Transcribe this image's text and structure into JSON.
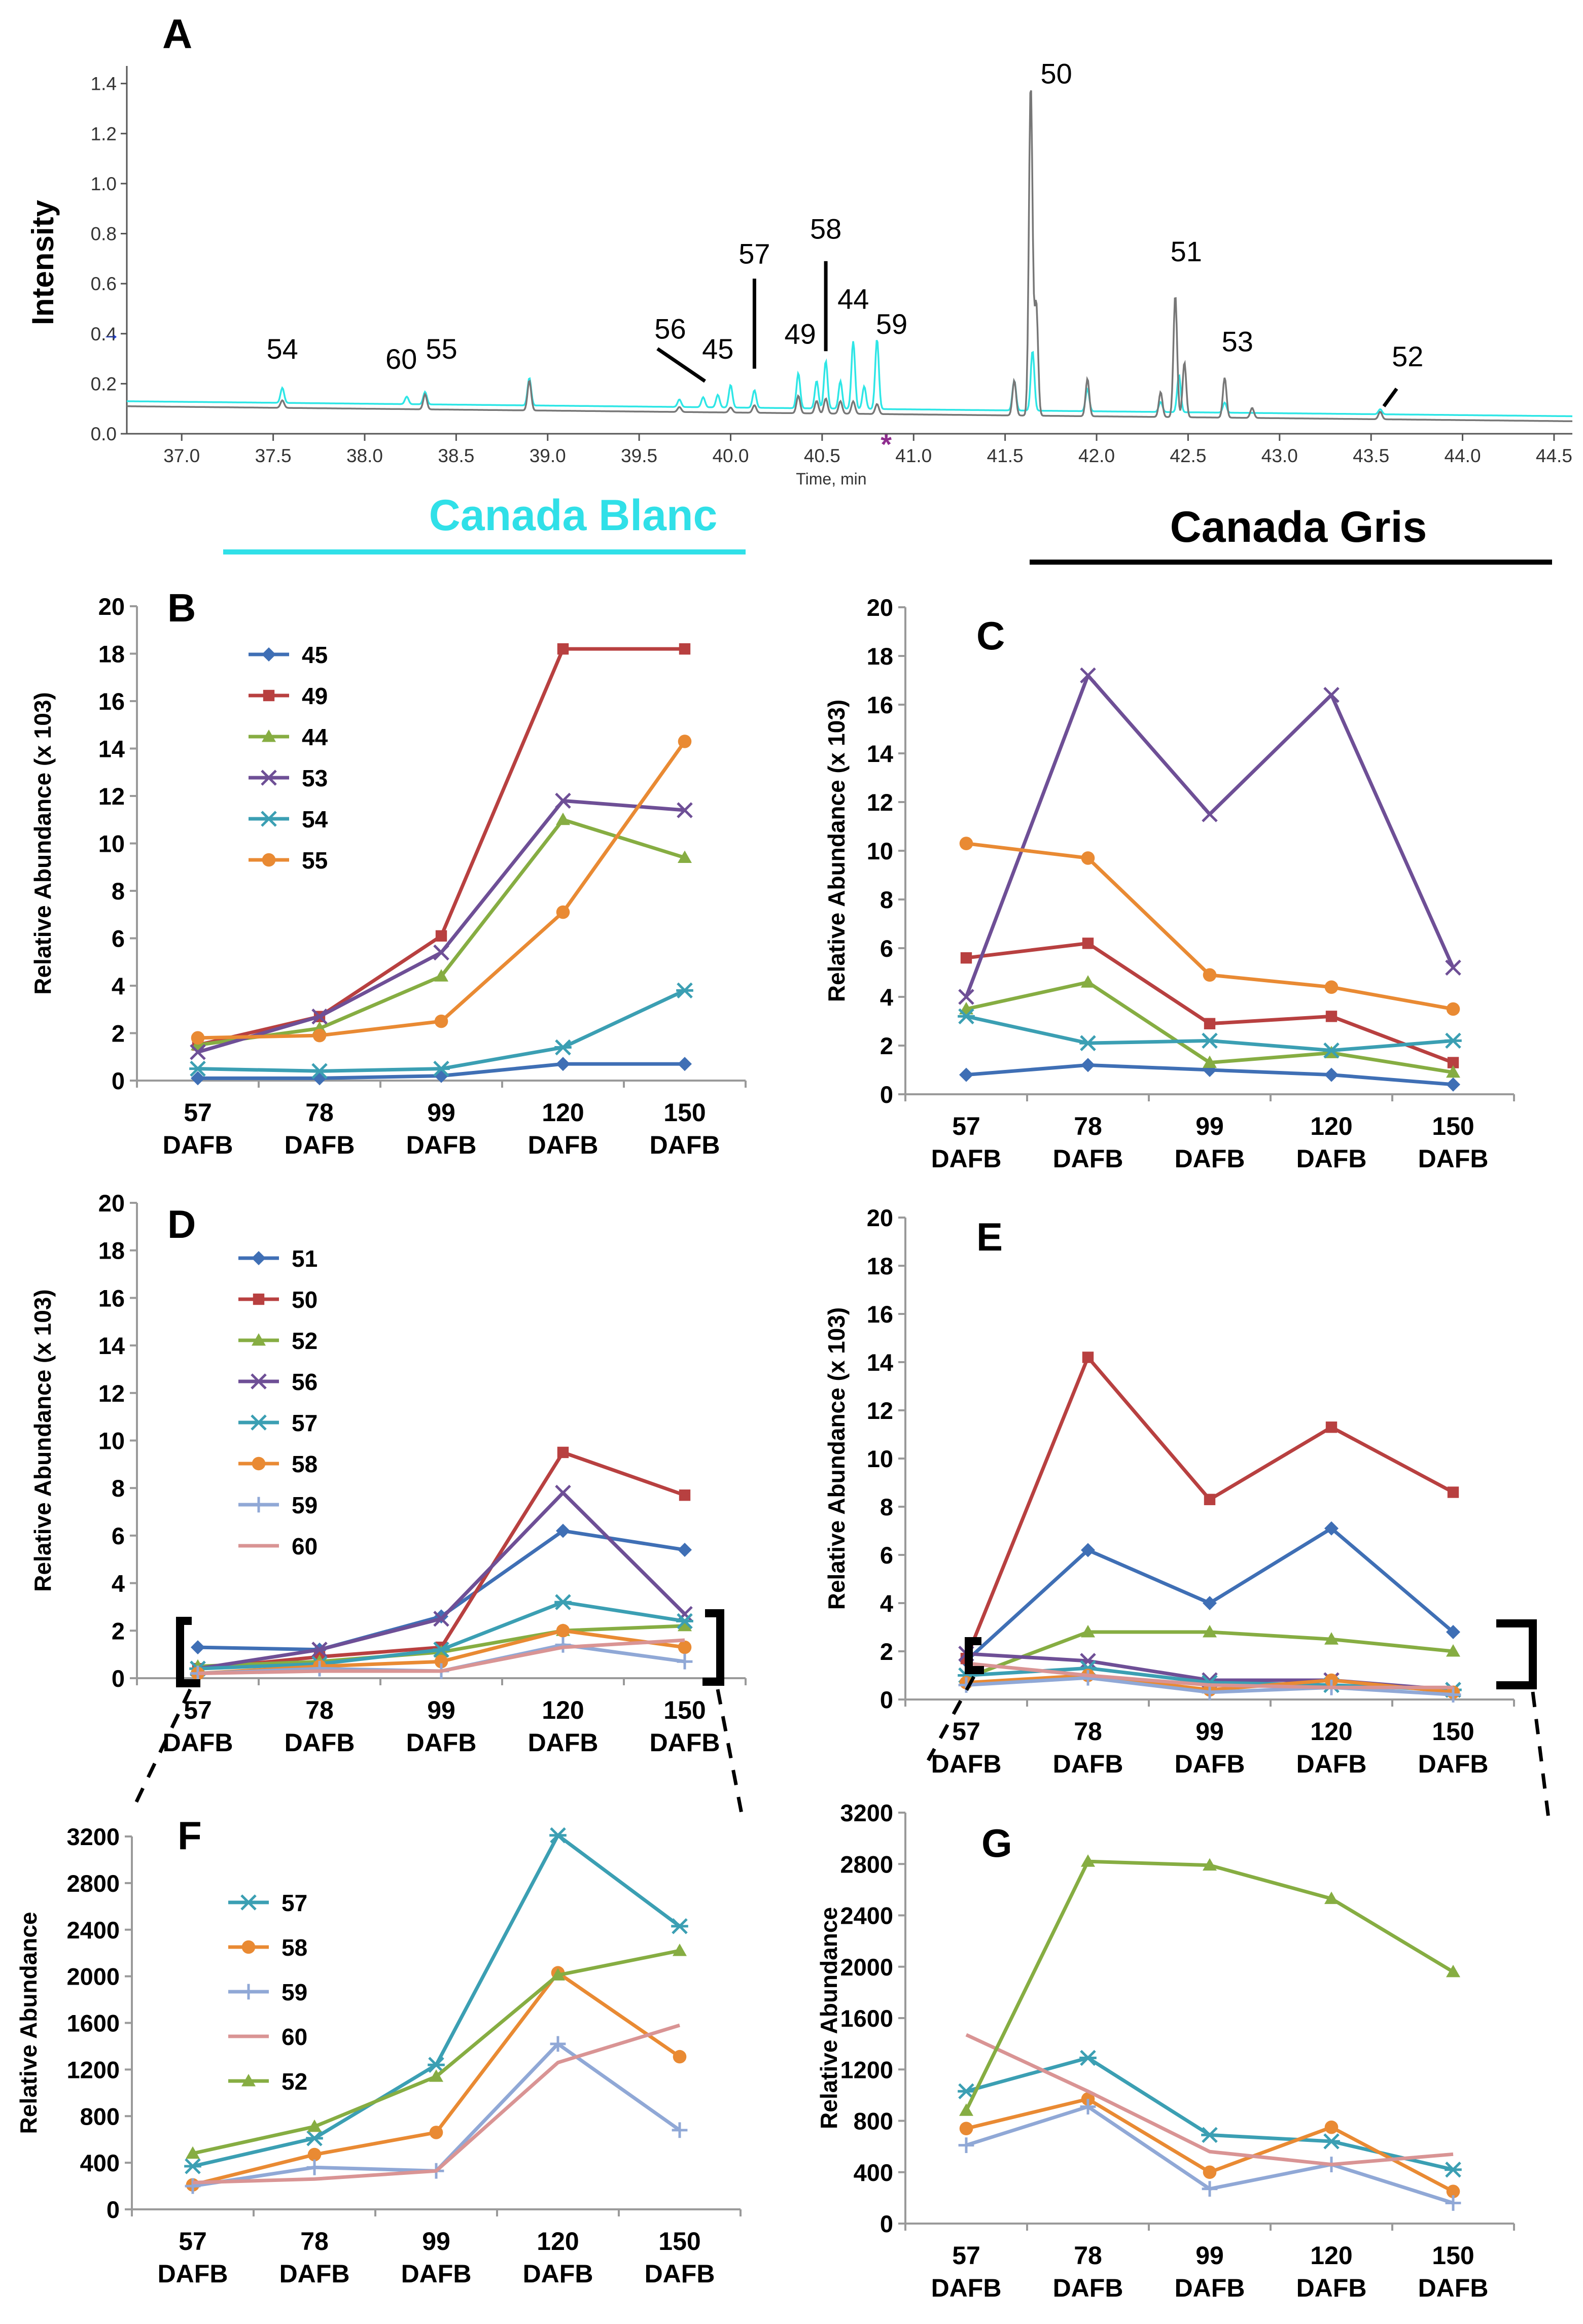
{
  "headers": {
    "blanc_title": "Canada Blanc",
    "gris_title": "Canada Gris"
  },
  "colors": {
    "s1": "#3f6fb5",
    "s2": "#b84040",
    "s3": "#86ad42",
    "s4": "#6e4f96",
    "s5": "#3b9fb3",
    "s6": "#e98a33",
    "s7": "#90a8d6",
    "s8": "#d99494",
    "cyan": "#2ee6e6",
    "gray": "#777777",
    "accent_blanc": "#30e0e8"
  },
  "chart_data": [
    {
      "id": "A",
      "type": "line",
      "panel_label": "A",
      "ylabel": "Intensity",
      "xlabel": "Time, min",
      "xlim": [
        36.7,
        44.6
      ],
      "ylim": [
        0,
        1.45
      ],
      "x_ticks": [
        "37.0",
        "37.5",
        "38.0",
        "38.5",
        "39.0",
        "39.5",
        "40.0",
        "40.5",
        "41.0",
        "41.5",
        "42.0",
        "42.5",
        "43.0",
        "43.5",
        "44.0",
        "44.5"
      ],
      "y_ticks": [
        "0.0",
        "0.2",
        "0.4",
        "0.6",
        "0.8",
        "1.0",
        "1.2",
        "1.4"
      ],
      "marker_symbol": "*",
      "marker_arrow": "→",
      "series": [
        {
          "name": "Canada Blanc",
          "color_key": "cyan",
          "baseline": [
            0.13,
            0.07
          ],
          "peaks": [
            [
              37.55,
              0.06
            ],
            [
              38.23,
              0.03
            ],
            [
              38.33,
              0.05
            ],
            [
              38.9,
              0.11
            ],
            [
              39.72,
              0.03
            ],
            [
              39.85,
              0.04
            ],
            [
              39.93,
              0.05
            ],
            [
              40.0,
              0.09
            ],
            [
              40.13,
              0.07
            ],
            [
              40.37,
              0.14
            ],
            [
              40.47,
              0.11
            ],
            [
              40.52,
              0.19
            ],
            [
              40.6,
              0.11
            ],
            [
              40.67,
              0.27
            ],
            [
              40.73,
              0.09
            ],
            [
              40.8,
              0.28
            ],
            [
              41.55,
              0.12
            ],
            [
              41.65,
              0.24
            ],
            [
              41.95,
              0.09
            ],
            [
              42.35,
              0.04
            ],
            [
              42.45,
              0.15
            ],
            [
              42.7,
              0.04
            ],
            [
              43.55,
              0.02
            ]
          ]
        },
        {
          "name": "Canada Gris",
          "color_key": "gray",
          "baseline": [
            0.11,
            0.05
          ],
          "peaks": [
            [
              37.55,
              0.03
            ],
            [
              38.33,
              0.06
            ],
            [
              38.9,
              0.12
            ],
            [
              39.72,
              0.02
            ],
            [
              40.0,
              0.02
            ],
            [
              40.13,
              0.03
            ],
            [
              40.37,
              0.07
            ],
            [
              40.47,
              0.05
            ],
            [
              40.52,
              0.06
            ],
            [
              40.6,
              0.05
            ],
            [
              40.67,
              0.05
            ],
            [
              40.8,
              0.04
            ],
            [
              41.55,
              0.14
            ],
            [
              41.64,
              1.33
            ],
            [
              41.67,
              0.45
            ],
            [
              41.95,
              0.15
            ],
            [
              42.35,
              0.1
            ],
            [
              42.43,
              0.49
            ],
            [
              42.48,
              0.22
            ],
            [
              42.7,
              0.16
            ],
            [
              42.85,
              0.04
            ],
            [
              43.55,
              0.03
            ]
          ]
        }
      ],
      "peak_labels": [
        {
          "text": "54",
          "x": 37.55,
          "y": 0.3
        },
        {
          "text": "60",
          "x": 38.2,
          "y": 0.26
        },
        {
          "text": "55",
          "x": 38.42,
          "y": 0.3
        },
        {
          "text": "56",
          "x": 39.67,
          "y": 0.38
        },
        {
          "text": "45",
          "x": 39.93,
          "y": 0.3
        },
        {
          "text": "57",
          "x": 40.13,
          "y": 0.68
        },
        {
          "text": "49",
          "x": 40.38,
          "y": 0.36
        },
        {
          "text": "58",
          "x": 40.52,
          "y": 0.78
        },
        {
          "text": "44",
          "x": 40.67,
          "y": 0.5
        },
        {
          "text": "59",
          "x": 40.88,
          "y": 0.4
        },
        {
          "text": "50",
          "x": 41.78,
          "y": 1.4
        },
        {
          "text": "51",
          "x": 42.49,
          "y": 0.69
        },
        {
          "text": "53",
          "x": 42.77,
          "y": 0.33
        },
        {
          "text": "52",
          "x": 43.7,
          "y": 0.27
        }
      ],
      "leaders": [
        {
          "x1": 39.6,
          "y1": 0.34,
          "x2": 39.86,
          "y2": 0.21
        },
        {
          "x1": 40.13,
          "y1": 0.62,
          "x2": 40.13,
          "y2": 0.26
        },
        {
          "x1": 40.52,
          "y1": 0.69,
          "x2": 40.52,
          "y2": 0.33
        },
        {
          "x1": 43.64,
          "y1": 0.18,
          "x2": 43.57,
          "y2": 0.11
        }
      ]
    },
    {
      "id": "B",
      "type": "line",
      "panel_label": "B",
      "ylabel": "Relative Abundance  (x 103)",
      "categories": [
        "57",
        "78",
        "99",
        "120",
        "150"
      ],
      "cat_suffix": "DAFB",
      "ylim": [
        0,
        20
      ],
      "y_ticks": [
        "0",
        "2",
        "4",
        "6",
        "8",
        "10",
        "12",
        "14",
        "16",
        "18",
        "20"
      ],
      "series": [
        {
          "name": "45",
          "color_key": "s1",
          "marker": "diamond",
          "values": [
            0.1,
            0.1,
            0.2,
            0.7,
            0.7
          ]
        },
        {
          "name": "49",
          "color_key": "s2",
          "marker": "square",
          "values": [
            1.5,
            2.7,
            6.1,
            18.2,
            18.2
          ]
        },
        {
          "name": "44",
          "color_key": "s3",
          "marker": "triangle",
          "values": [
            1.5,
            2.2,
            4.4,
            11.0,
            9.4
          ]
        },
        {
          "name": "53",
          "color_key": "s4",
          "marker": "x",
          "values": [
            1.2,
            2.7,
            5.4,
            11.8,
            11.4
          ]
        },
        {
          "name": "54",
          "color_key": "s5",
          "marker": "star",
          "values": [
            0.5,
            0.4,
            0.5,
            1.4,
            3.8
          ]
        },
        {
          "name": "55",
          "color_key": "s6",
          "marker": "circle",
          "values": [
            1.8,
            1.9,
            2.5,
            7.1,
            14.3
          ]
        }
      ]
    },
    {
      "id": "C",
      "type": "line",
      "panel_label": "C",
      "ylabel": "Relative Abundance  (x 103)",
      "categories": [
        "57",
        "78",
        "99",
        "120",
        "150"
      ],
      "cat_suffix": "DAFB",
      "ylim": [
        0,
        20
      ],
      "y_ticks": [
        "0",
        "2",
        "4",
        "6",
        "8",
        "10",
        "12",
        "14",
        "16",
        "18",
        "20"
      ],
      "series": [
        {
          "name": "45",
          "color_key": "s1",
          "marker": "diamond",
          "values": [
            0.8,
            1.2,
            1.0,
            0.8,
            0.4
          ]
        },
        {
          "name": "49",
          "color_key": "s2",
          "marker": "square",
          "values": [
            5.6,
            6.2,
            2.9,
            3.2,
            1.3
          ]
        },
        {
          "name": "44",
          "color_key": "s3",
          "marker": "triangle",
          "values": [
            3.5,
            4.6,
            1.3,
            1.7,
            0.9
          ]
        },
        {
          "name": "53",
          "color_key": "s4",
          "marker": "x",
          "values": [
            4.0,
            17.2,
            11.5,
            16.4,
            5.2
          ]
        },
        {
          "name": "54",
          "color_key": "s5",
          "marker": "star",
          "values": [
            3.2,
            2.1,
            2.2,
            1.8,
            2.2
          ]
        },
        {
          "name": "55",
          "color_key": "s6",
          "marker": "circle",
          "values": [
            10.3,
            9.7,
            4.9,
            4.4,
            3.5
          ]
        }
      ]
    },
    {
      "id": "D",
      "type": "line",
      "panel_label": "D",
      "ylabel": "Relative Abundance  (x 103)",
      "categories": [
        "57",
        "78",
        "99",
        "120",
        "150"
      ],
      "cat_suffix": "DAFB",
      "ylim": [
        0,
        20
      ],
      "y_ticks": [
        "0",
        "2",
        "4",
        "6",
        "8",
        "10",
        "12",
        "14",
        "16",
        "18",
        "20"
      ],
      "series": [
        {
          "name": "51",
          "color_key": "s1",
          "marker": "diamond",
          "values": [
            1.3,
            1.2,
            2.6,
            6.2,
            5.4
          ]
        },
        {
          "name": "50",
          "color_key": "s2",
          "marker": "square",
          "values": [
            0.4,
            0.9,
            1.3,
            9.5,
            7.7
          ]
        },
        {
          "name": "52",
          "color_key": "s3",
          "marker": "triangle",
          "values": [
            0.5,
            0.7,
            1.1,
            2.0,
            2.2
          ]
        },
        {
          "name": "56",
          "color_key": "s4",
          "marker": "x",
          "values": [
            0.4,
            1.2,
            2.5,
            7.8,
            2.7
          ]
        },
        {
          "name": "57",
          "color_key": "s5",
          "marker": "star",
          "values": [
            0.4,
            0.6,
            1.2,
            3.2,
            2.4
          ]
        },
        {
          "name": "58",
          "color_key": "s6",
          "marker": "circle",
          "values": [
            0.2,
            0.5,
            0.7,
            2.0,
            1.3
          ]
        },
        {
          "name": "59",
          "color_key": "s7",
          "marker": "plus",
          "values": [
            0.2,
            0.4,
            0.3,
            1.4,
            0.7
          ]
        },
        {
          "name": "60",
          "color_key": "s8",
          "marker": "none",
          "values": [
            0.2,
            0.3,
            0.3,
            1.3,
            1.6
          ]
        }
      ]
    },
    {
      "id": "E",
      "type": "line",
      "panel_label": "E",
      "ylabel": "Relative Abundance  (x 103)",
      "categories": [
        "57",
        "78",
        "99",
        "120",
        "150"
      ],
      "cat_suffix": "DAFB",
      "ylim": [
        0,
        20
      ],
      "y_ticks": [
        "0",
        "2",
        "4",
        "6",
        "8",
        "10",
        "12",
        "14",
        "16",
        "18",
        "20"
      ],
      "series": [
        {
          "name": "51",
          "color_key": "s1",
          "marker": "diamond",
          "values": [
            1.6,
            6.2,
            4.0,
            7.1,
            2.8
          ]
        },
        {
          "name": "50",
          "color_key": "s2",
          "marker": "square",
          "values": [
            1.7,
            14.2,
            8.3,
            11.3,
            8.6
          ]
        },
        {
          "name": "52",
          "color_key": "s3",
          "marker": "triangle",
          "values": [
            0.9,
            2.8,
            2.8,
            2.5,
            2.0
          ]
        },
        {
          "name": "56",
          "color_key": "s4",
          "marker": "x",
          "values": [
            1.9,
            1.6,
            0.8,
            0.8,
            0.4
          ]
        },
        {
          "name": "57",
          "color_key": "s5",
          "marker": "star",
          "values": [
            1.0,
            1.3,
            0.7,
            0.6,
            0.4
          ]
        },
        {
          "name": "58",
          "color_key": "s6",
          "marker": "circle",
          "values": [
            0.7,
            1.0,
            0.4,
            0.8,
            0.3
          ]
        },
        {
          "name": "59",
          "color_key": "s7",
          "marker": "plus",
          "values": [
            0.6,
            0.9,
            0.3,
            0.5,
            0.2
          ]
        },
        {
          "name": "60",
          "color_key": "s8",
          "marker": "none",
          "values": [
            1.5,
            1.0,
            0.6,
            0.5,
            0.5
          ]
        }
      ]
    },
    {
      "id": "F",
      "type": "line",
      "panel_label": "F",
      "ylabel": "Relative Abundance",
      "categories": [
        "57",
        "78",
        "99",
        "120",
        "150"
      ],
      "cat_suffix": "DAFB",
      "ylim": [
        0,
        3200
      ],
      "y_ticks": [
        "0",
        "400",
        "800",
        "1200",
        "1600",
        "2000",
        "2400",
        "2800",
        "3200"
      ],
      "series": [
        {
          "name": "57",
          "color_key": "s5",
          "marker": "star",
          "values": [
            370,
            610,
            1240,
            3210,
            2430
          ]
        },
        {
          "name": "58",
          "color_key": "s6",
          "marker": "circle",
          "values": [
            210,
            470,
            660,
            2030,
            1310
          ]
        },
        {
          "name": "59",
          "color_key": "s7",
          "marker": "plus",
          "values": [
            200,
            360,
            330,
            1420,
            680
          ]
        },
        {
          "name": "60",
          "color_key": "s8",
          "marker": "none",
          "values": [
            230,
            260,
            330,
            1260,
            1580
          ]
        },
        {
          "name": "52",
          "color_key": "s3",
          "marker": "triangle",
          "values": [
            480,
            710,
            1140,
            2010,
            2220
          ]
        }
      ]
    },
    {
      "id": "G",
      "type": "line",
      "panel_label": "G",
      "ylabel": "Relative Abundance",
      "categories": [
        "57",
        "78",
        "99",
        "120",
        "150"
      ],
      "cat_suffix": "DAFB",
      "ylim": [
        0,
        3200
      ],
      "y_ticks": [
        "0",
        "400",
        "800",
        "1200",
        "1600",
        "2000",
        "2400",
        "2800",
        "3200"
      ],
      "series": [
        {
          "name": "57",
          "color_key": "s5",
          "marker": "star",
          "values": [
            1030,
            1290,
            690,
            640,
            420
          ]
        },
        {
          "name": "58",
          "color_key": "s6",
          "marker": "circle",
          "values": [
            740,
            970,
            400,
            750,
            250
          ]
        },
        {
          "name": "59",
          "color_key": "s7",
          "marker": "plus",
          "values": [
            610,
            910,
            270,
            460,
            160
          ]
        },
        {
          "name": "60",
          "color_key": "s8",
          "marker": "none",
          "values": [
            1470,
            1030,
            560,
            460,
            540
          ]
        },
        {
          "name": "52",
          "color_key": "s3",
          "marker": "triangle",
          "values": [
            880,
            2820,
            2790,
            2530,
            1960
          ]
        }
      ]
    }
  ]
}
